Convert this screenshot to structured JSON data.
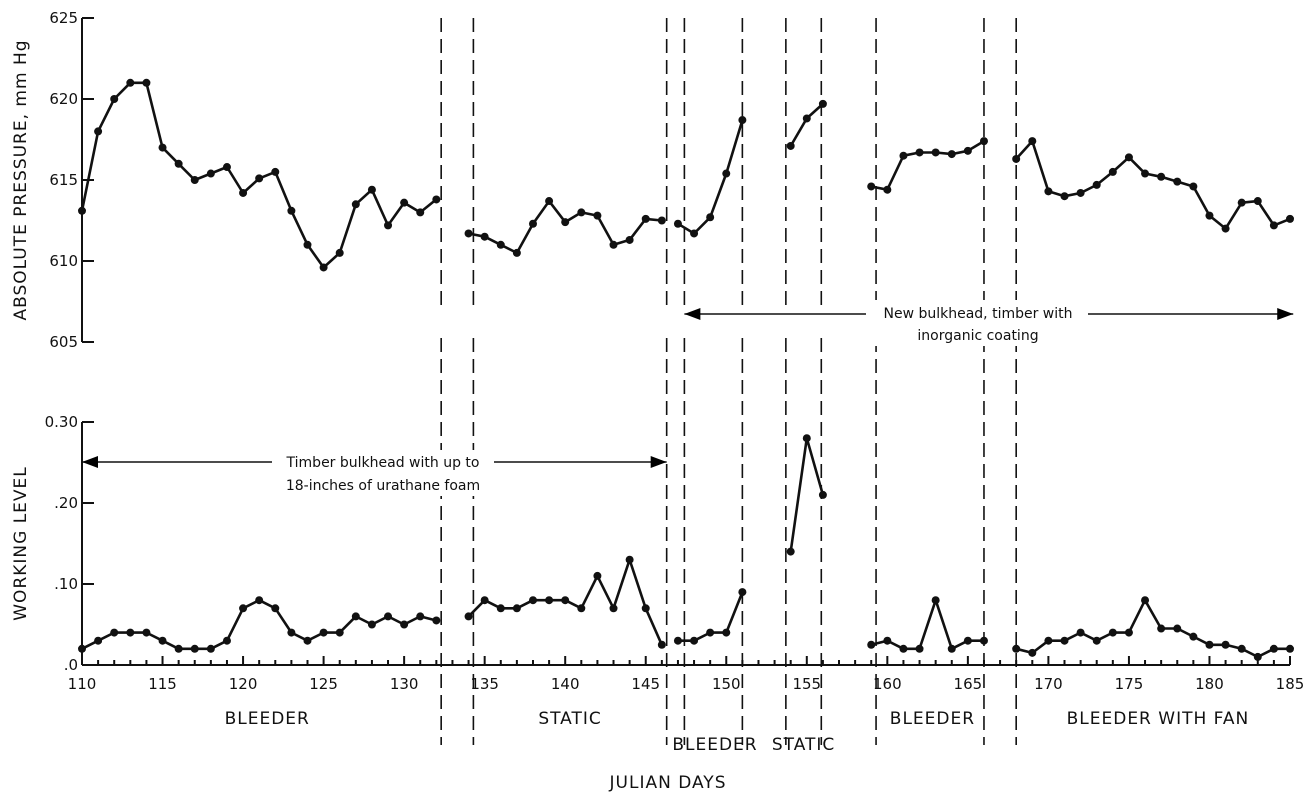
{
  "chart_data": {
    "type": "line",
    "xlabel": "JULIAN DAYS",
    "x_ticks": [
      "110",
      "115",
      "120",
      "125",
      "130",
      "135",
      "140",
      "145",
      "150",
      "155",
      "160",
      "165",
      "170",
      "175",
      "180",
      "185"
    ],
    "x_range": [
      110,
      185
    ],
    "panels": [
      {
        "ylabel": "ABSOLUTE PRESSURE, mm Hg",
        "ylim": [
          605,
          625
        ],
        "y_ticks": [
          "625",
          "620",
          "615",
          "610",
          "605"
        ],
        "segments": [
          {
            "x": [
              110,
              111,
              112,
              113,
              114,
              115,
              116,
              117,
              118,
              119,
              120,
              121,
              122,
              123,
              124,
              125,
              126,
              127,
              128,
              129,
              130,
              131,
              132
            ],
            "y": [
              613.1,
              618,
              620,
              621,
              621,
              617,
              616,
              615,
              615.4,
              615.8,
              614.2,
              615.1,
              615.5,
              613.1,
              611,
              609.6,
              610.5,
              613.5,
              614.4,
              612.2,
              613.6,
              613,
              613.8
            ]
          },
          {
            "x": [
              134,
              135,
              136,
              137,
              138,
              139,
              140,
              141,
              142,
              143,
              144,
              145,
              146
            ],
            "y": [
              611.7,
              611.5,
              611,
              610.5,
              612.3,
              613.7,
              612.4,
              613,
              612.8,
              611,
              611.3,
              612.6,
              612.5
            ]
          },
          {
            "x": [
              147,
              148,
              149,
              150,
              151
            ],
            "y": [
              612.3,
              611.7,
              612.7,
              615.4,
              618.7
            ]
          },
          {
            "x": [
              154,
              155,
              156
            ],
            "y": [
              617.1,
              618.8,
              619.7
            ]
          },
          {
            "x": [
              159,
              160,
              161,
              162,
              163,
              164,
              165,
              166
            ],
            "y": [
              614.6,
              614.4,
              616.5,
              616.7,
              616.7,
              616.6,
              616.8,
              617.4
            ]
          },
          {
            "x": [
              168,
              169,
              170,
              171,
              172,
              173,
              174,
              175,
              176,
              177,
              178,
              179,
              180,
              181,
              182,
              183,
              184,
              185
            ],
            "y": [
              616.3,
              617.4,
              614.3,
              614,
              614.2,
              614.7,
              615.5,
              616.4,
              615.4,
              615.2,
              614.9,
              614.6,
              612.8,
              612,
              613.6,
              613.7,
              612.2,
              612.6
            ]
          }
        ]
      },
      {
        "ylabel": "WORKING LEVEL",
        "ylim": [
          0,
          0.3
        ],
        "y_ticks": [
          "0.30",
          ".20",
          ".10",
          ".0"
        ],
        "segments": [
          {
            "x": [
              110,
              111,
              112,
              113,
              114,
              115,
              116,
              117,
              118,
              119,
              120,
              121,
              122,
              123,
              124,
              125,
              126,
              127,
              128,
              129,
              130,
              131,
              132
            ],
            "y": [
              0.02,
              0.03,
              0.04,
              0.04,
              0.04,
              0.03,
              0.02,
              0.02,
              0.02,
              0.03,
              0.07,
              0.08,
              0.07,
              0.04,
              0.03,
              0.04,
              0.04,
              0.06,
              0.05,
              0.06,
              0.05,
              0.06,
              0.055
            ]
          },
          {
            "x": [
              134,
              135,
              136,
              137,
              138,
              139,
              140,
              141,
              142,
              143,
              144,
              145,
              146
            ],
            "y": [
              0.06,
              0.08,
              0.07,
              0.07,
              0.08,
              0.08,
              0.08,
              0.07,
              0.11,
              0.07,
              0.13,
              0.07,
              0.025
            ]
          },
          {
            "x": [
              147,
              148,
              149,
              150,
              151
            ],
            "y": [
              0.03,
              0.03,
              0.04,
              0.04,
              0.09
            ]
          },
          {
            "x": [
              154,
              155,
              156
            ],
            "y": [
              0.14,
              0.28,
              0.21
            ]
          },
          {
            "x": [
              159,
              160,
              161,
              162,
              163,
              164,
              165,
              166
            ],
            "y": [
              0.025,
              0.03,
              0.02,
              0.02,
              0.08,
              0.02,
              0.03,
              0.03
            ]
          },
          {
            "x": [
              168,
              169,
              170,
              171,
              172,
              173,
              174,
              175,
              176,
              177,
              178,
              179,
              180,
              181,
              182,
              183,
              184,
              185
            ],
            "y": [
              0.02,
              0.015,
              0.03,
              0.03,
              0.04,
              0.03,
              0.04,
              0.04,
              0.08,
              0.045,
              0.045,
              0.035,
              0.025,
              0.025,
              0.02,
              0.01,
              0.02,
              0.02
            ]
          }
        ]
      }
    ],
    "dividers": [
      132.3,
      134.3,
      146.3,
      147.4,
      151,
      153.7,
      155.9,
      159.3,
      166,
      168
    ],
    "phases": [
      {
        "label": "BLEEDER",
        "x": 121.5,
        "row": 1
      },
      {
        "label": "STATIC",
        "x": 140.3,
        "row": 1
      },
      {
        "label": "BLEEDER",
        "x": 149.3,
        "row": 2
      },
      {
        "label": "STATIC",
        "x": 154.8,
        "row": 2
      },
      {
        "label": "BLEEDER",
        "x": 162.8,
        "row": 1
      },
      {
        "label": "BLEEDER WITH FAN",
        "x": 176.8,
        "row": 1
      }
    ],
    "annotations": [
      {
        "line1": "New bulkhead, timber with",
        "line2": "inorganic coating",
        "x_from": 147.4,
        "x_to": 185.2
      },
      {
        "line1": "Timber bulkhead with up to",
        "line2": "18-inches of urathane foam",
        "x_from": 110,
        "x_to": 146.3
      }
    ]
  }
}
